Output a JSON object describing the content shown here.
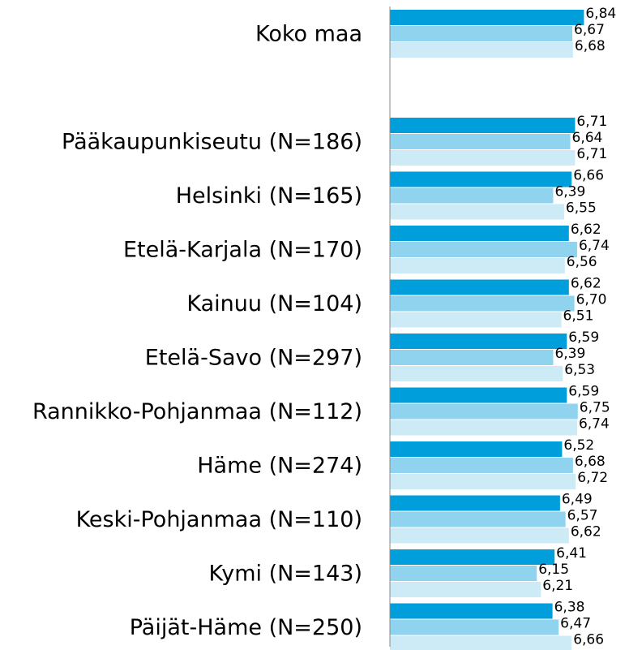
{
  "chart_data": {
    "type": "bar",
    "orientation": "horizontal",
    "categories": [
      "Koko maa",
      null,
      "Pääkaupunkiseutu (N=186)",
      "Helsinki (N=165)",
      "Etelä-Karjala (N=170)",
      "Kainuu (N=104)",
      "Etelä-Savo (N=297)",
      "Rannikko-Pohjanmaa (N=112)",
      "Häme (N=274)",
      "Keski-Pohjanmaa (N=110)",
      "Kymi (N=143)",
      "Päijät-Häme (N=250)"
    ],
    "series": [
      {
        "color": "#009fdb",
        "values": [
          6.84,
          null,
          6.71,
          6.66,
          6.62,
          6.62,
          6.59,
          6.59,
          6.52,
          6.49,
          6.41,
          6.38
        ],
        "value_labels": [
          "6,84",
          null,
          "6,71",
          "6,66",
          "6,62",
          "6,62",
          "6,59",
          "6,59",
          "6,52",
          "6,49",
          "6,41",
          "6,38"
        ]
      },
      {
        "color": "#8fd3ef",
        "values": [
          6.67,
          null,
          6.64,
          6.39,
          6.74,
          6.7,
          6.39,
          6.75,
          6.68,
          6.57,
          6.15,
          6.47
        ],
        "value_labels": [
          "6,67",
          null,
          "6,64",
          "6,39",
          "6,74",
          "6,70",
          "6,39",
          "6,75",
          "6,68",
          "6,57",
          "6,15",
          "6,47"
        ]
      },
      {
        "color": "#cdeaf7",
        "values": [
          6.68,
          null,
          6.71,
          6.55,
          6.56,
          6.51,
          6.53,
          6.74,
          6.72,
          6.62,
          6.21,
          6.66
        ],
        "value_labels": [
          "6,68",
          null,
          "6,71",
          "6,55",
          "6,56",
          "6,51",
          "6,53",
          "6,74",
          "6,72",
          "6,62",
          "6,21",
          "6,66"
        ]
      }
    ],
    "xlim": [
      4,
      7.5
    ]
  }
}
